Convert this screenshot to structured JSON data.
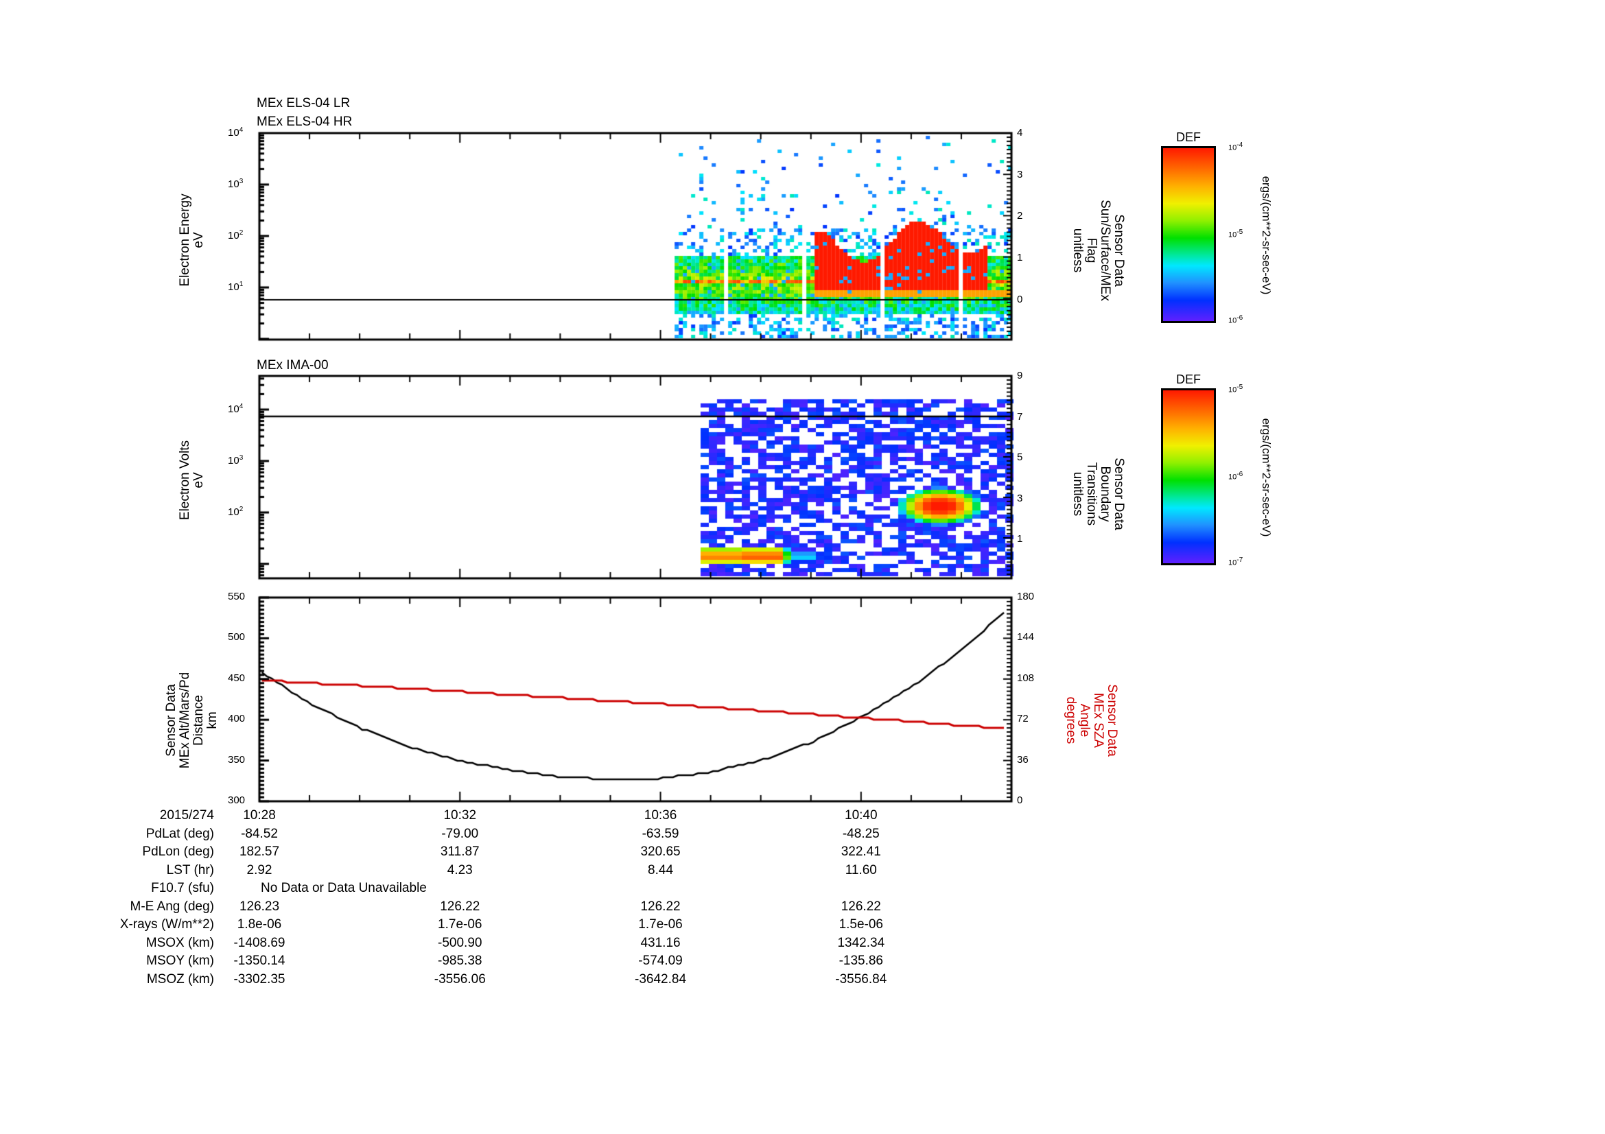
{
  "chart_data": [
    {
      "type": "heatmap",
      "panel": "1",
      "titles": [
        "MEx ELS-04 LR",
        "MEx ELS-04 HR"
      ],
      "ylabel": [
        "Electron Energy",
        "eV"
      ],
      "yscale": "log",
      "ylim": [
        1,
        10000
      ],
      "yticks": [
        "10^4",
        "10^3",
        "10^2",
        "10^1"
      ],
      "right_ylabel": [
        "Sensor Data",
        "Sun/Surface/MEx",
        "Flag",
        "unitless"
      ],
      "right_ylim": [
        -1,
        4
      ],
      "right_yticks": [
        "4",
        "3",
        "2",
        "1",
        "0"
      ],
      "flag_line_value": 0,
      "data_start": "10:36",
      "colorbar": {
        "title": "DEF",
        "range": [
          "10^-6",
          "10^-4"
        ],
        "label": "ergs/(cm**2-sr-sec-eV)"
      },
      "features": "Broad green/yellow band ~10-40 eV from 10:36, intense red (~10^-4) region 20-150 eV from ~10:39 to 10:43; sparse blue pixels up to 10^4 eV"
    },
    {
      "type": "heatmap",
      "panel": "2",
      "titles": [
        "MEx IMA-00"
      ],
      "ylabel": [
        "Electron Volts",
        "eV"
      ],
      "yscale": "log",
      "ylim": [
        10,
        40000
      ],
      "yticks": [
        "10^4",
        "10^3",
        "10^2"
      ],
      "right_ylabel": [
        "Sensor Data",
        "Boundary",
        "Transitions",
        "unitless"
      ],
      "right_ylim": [
        -1,
        9
      ],
      "right_yticks": [
        "9",
        "7",
        "5",
        "3",
        "1"
      ],
      "boundary_line_value": 7,
      "data_start": "10:36.5",
      "colorbar": {
        "title": "DEF",
        "range": [
          "10^-7",
          "10^-5"
        ],
        "label": "ergs/(cm**2-sr-sec-eV)"
      },
      "features": "Red band at ~15-20 eV from 10:36.5 to 10:39, red blob ~100-250 eV around 10:41-10:42.5; noisy purple/blue background"
    },
    {
      "type": "line",
      "panel": "3",
      "ylabel": [
        "Sensor Data",
        "MEx Alt/Mars/Pd",
        "Distance",
        "km"
      ],
      "ylim": [
        300,
        550
      ],
      "yticks": [
        550,
        500,
        450,
        400,
        350,
        300
      ],
      "right_ylabel": [
        "Sensor Data",
        "MEx SZA",
        "Angle",
        "degrees"
      ],
      "right_ylim": [
        0,
        180
      ],
      "right_yticks": [
        180,
        144,
        108,
        72,
        36,
        0
      ],
      "x": [
        "10:28",
        "10:29",
        "10:30",
        "10:31",
        "10:32",
        "10:33",
        "10:34",
        "10:35",
        "10:36",
        "10:37",
        "10:38",
        "10:39",
        "10:40",
        "10:41",
        "10:42",
        "10:43"
      ],
      "series": [
        {
          "name": "MEx Alt/Mars/Pd Distance (km)",
          "color": "#000000",
          "axis": "left",
          "values": [
            460,
            420,
            390,
            366,
            350,
            338,
            330,
            327,
            328,
            336,
            350,
            372,
            403,
            440,
            485,
            540
          ]
        },
        {
          "name": "MEx SZA Angle (degrees)",
          "color": "#cc0000",
          "axis": "right",
          "values": [
            107,
            104.5,
            102,
            99.5,
            97,
            94,
            91.5,
            88.5,
            86,
            83,
            80,
            77,
            73.5,
            70.5,
            67,
            64
          ]
        }
      ]
    }
  ],
  "x_axis": {
    "date": "2015/274",
    "ticks": [
      "10:28",
      "10:32",
      "10:36",
      "10:40"
    ],
    "start_min": 0,
    "end_min": 15
  },
  "ephemeris": {
    "rows": [
      {
        "label": "PdLat (deg)",
        "values": [
          "-84.52",
          "-79.00",
          "-63.59",
          "-48.25"
        ]
      },
      {
        "label": "PdLon (deg)",
        "values": [
          "182.57",
          "311.87",
          "320.65",
          "322.41"
        ]
      },
      {
        "label": "LST (hr)",
        "values": [
          "2.92",
          "4.23",
          "8.44",
          "11.60"
        ]
      },
      {
        "label": "F10.7 (sfu)",
        "span": "No Data or Data Unavailable"
      },
      {
        "label": "M-E Ang (deg)",
        "values": [
          "126.23",
          "126.22",
          "126.22",
          "126.22"
        ]
      },
      {
        "label": "X-rays (W/m**2)",
        "values": [
          "1.8e-06",
          "1.7e-06",
          "1.7e-06",
          "1.5e-06"
        ]
      },
      {
        "label": "MSOX (km)",
        "values": [
          "-1408.69",
          "-500.90",
          "431.16",
          "1342.34"
        ]
      },
      {
        "label": "MSOY (km)",
        "values": [
          "-1350.14",
          "-985.38",
          "-574.09",
          "-135.86"
        ]
      },
      {
        "label": "MSOZ (km)",
        "values": [
          "-3302.35",
          "-3556.06",
          "-3642.84",
          "-3556.84"
        ]
      }
    ]
  },
  "colors": {
    "axis": "#000000",
    "sza_line": "#cc0000",
    "alt_line": "#000000"
  }
}
